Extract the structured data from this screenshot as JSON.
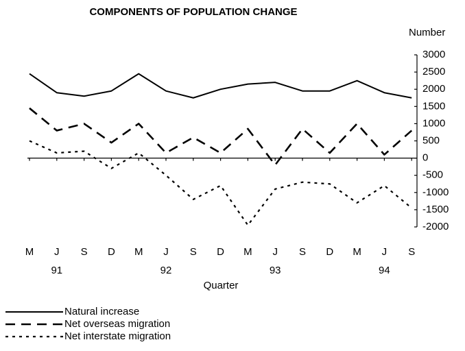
{
  "chart_data": {
    "type": "line",
    "title": "COMPONENTS OF POPULATION CHANGE",
    "y_axis_label": "Number",
    "x_axis_label": "Quarter",
    "categories": [
      "M",
      "J",
      "S",
      "D",
      "M",
      "J",
      "S",
      "D",
      "M",
      "J",
      "S",
      "D",
      "M",
      "J",
      "S"
    ],
    "years": [
      "91",
      "92",
      "93",
      "94"
    ],
    "ylim": [
      -2000,
      3000
    ],
    "yticks": [
      3000,
      2500,
      2000,
      1500,
      1000,
      500,
      0,
      -500,
      -1000,
      -1500,
      -2000
    ],
    "series": [
      {
        "name": "Natural increase",
        "color": "#000000",
        "style": "solid",
        "values": [
          2450,
          1900,
          1800,
          1950,
          2450,
          1950,
          1750,
          2000,
          2150,
          2200,
          1950,
          1950,
          2250,
          1900,
          1750
        ]
      },
      {
        "name": "Net overseas migration",
        "color": "#000000",
        "style": "dashed",
        "values": [
          1450,
          800,
          1000,
          450,
          1000,
          150,
          600,
          150,
          850,
          -200,
          850,
          150,
          1000,
          100,
          800
        ]
      },
      {
        "name": "Net interstate migration",
        "color": "#000000",
        "style": "dotted",
        "values": [
          500,
          150,
          200,
          -300,
          150,
          -500,
          -1200,
          -800,
          -1950,
          -900,
          -700,
          -750,
          -1300,
          -800,
          -1450
        ]
      }
    ]
  }
}
